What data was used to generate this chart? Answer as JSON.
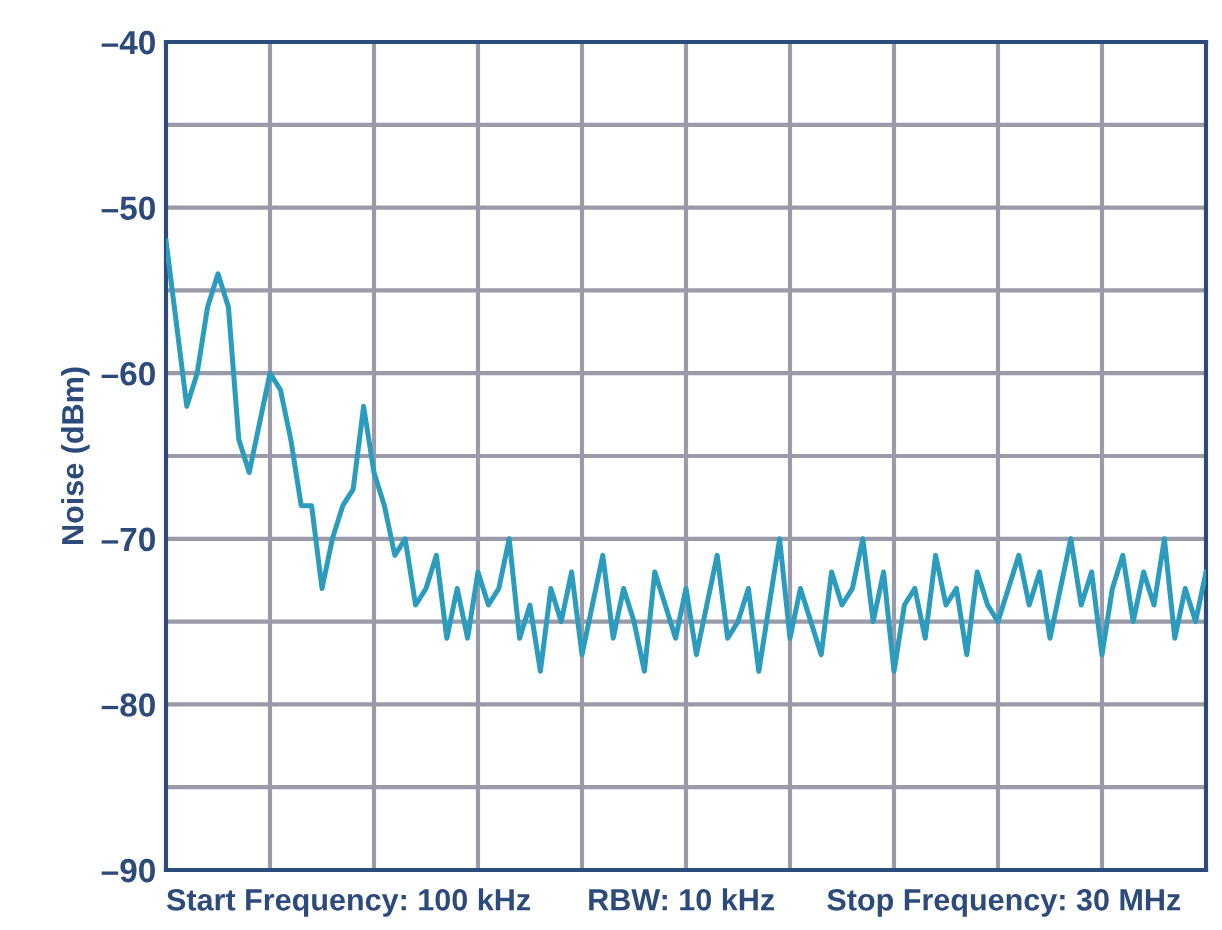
{
  "chart_data": {
    "type": "line",
    "ylabel": "Noise (dBm)",
    "categories": [
      null,
      null,
      null,
      null,
      null,
      null,
      null,
      null,
      null,
      null,
      null,
      null,
      null,
      null,
      null,
      null,
      null,
      null,
      null,
      null,
      null,
      null,
      null,
      null,
      null,
      null,
      null,
      null,
      null,
      null,
      null,
      null,
      null,
      null,
      null,
      null,
      null,
      null,
      null,
      null,
      null,
      null,
      null,
      null,
      null,
      null,
      null,
      null,
      null,
      null,
      null,
      null,
      null,
      null,
      null,
      null,
      null,
      null,
      null,
      null,
      null,
      null,
      null,
      null,
      null,
      null,
      null,
      null,
      null,
      null,
      null,
      null,
      null,
      null,
      null,
      null,
      null,
      null,
      null,
      null,
      null,
      null,
      null,
      null,
      null,
      null,
      null,
      null,
      null,
      null,
      null,
      null,
      null,
      null,
      null,
      null,
      null,
      null,
      null,
      null,
      null
    ],
    "ylim": [
      -90,
      -40
    ],
    "yticks": [
      {
        "value": -90,
        "label": "–90"
      },
      {
        "value": -85,
        "label": null
      },
      {
        "value": -80,
        "label": "–80"
      },
      {
        "value": -75,
        "label": null
      },
      {
        "value": -70,
        "label": "–70"
      },
      {
        "value": -65,
        "label": null
      },
      {
        "value": -60,
        "label": "–60"
      },
      {
        "value": -55,
        "label": null
      },
      {
        "value": -50,
        "label": "–50"
      },
      {
        "value": -45,
        "label": null
      },
      {
        "value": -40,
        "label": "–40"
      }
    ],
    "grid": true,
    "tick_labels": "y",
    "line_style": "solid",
    "marker": "none",
    "annotations": [
      "Start Frequency: 100 kHz",
      "RBW: 10 kHz",
      "Stop Frequency: 30 MHz"
    ],
    "series": [
      {
        "color": "#2b9cbd",
        "values": [
          -52,
          -57,
          -62,
          -60,
          -56,
          -54,
          -56,
          -64,
          -66,
          -63,
          -60,
          -61,
          -64,
          -68,
          -68,
          -73,
          -70,
          -68,
          -67,
          -62,
          -66,
          -68,
          -71,
          -70,
          -74,
          -73,
          -71,
          -76,
          -73,
          -76,
          -72,
          -74,
          -73,
          -70,
          -76,
          -74,
          -78,
          -73,
          -75,
          -72,
          -77,
          -74,
          -71,
          -76,
          -73,
          -75,
          -78,
          -72,
          -74,
          -76,
          -73,
          -77,
          -74,
          -71,
          -76,
          -75,
          -73,
          -78,
          -74,
          -70,
          -76,
          -73,
          -75,
          -77,
          -72,
          -74,
          -73,
          -70,
          -75,
          -72,
          -78,
          -74,
          -73,
          -76,
          -71,
          -74,
          -73,
          -77,
          -72,
          -74,
          -75,
          -73,
          -71,
          -74,
          -72,
          -76,
          -73,
          -70,
          -74,
          -72,
          -77,
          -73,
          -71,
          -75,
          -72,
          -74,
          -70,
          -76,
          -73,
          -75,
          -72
        ]
      }
    ]
  }
}
